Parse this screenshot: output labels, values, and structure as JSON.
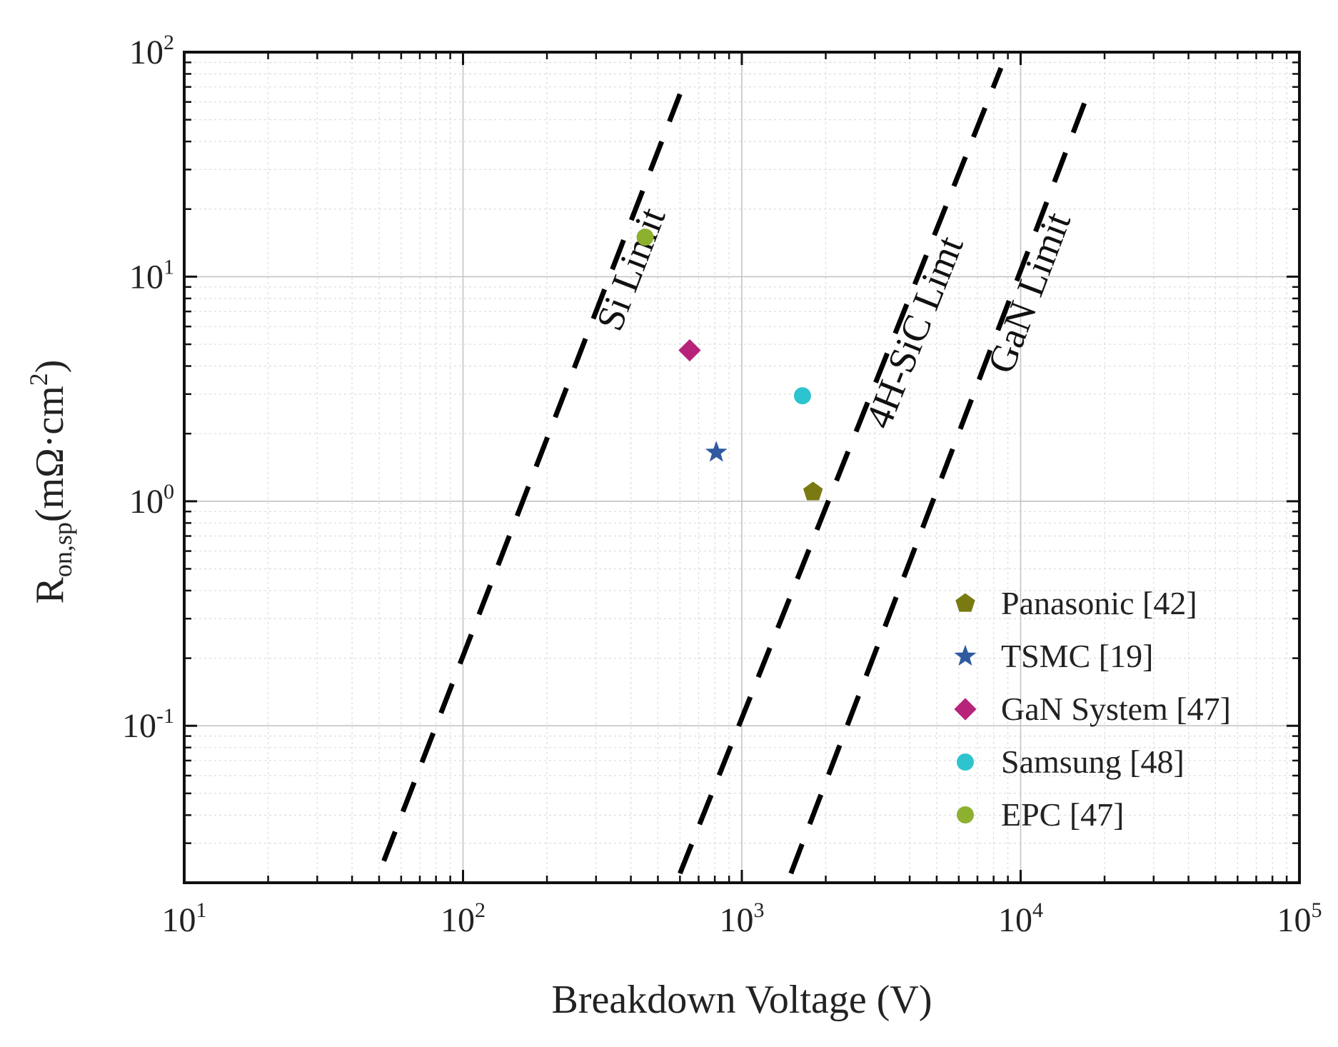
{
  "chart_data": {
    "type": "scatter",
    "title": "",
    "xlabel": "Breakdown Voltage (V)",
    "ylabel": {
      "base": "R",
      "sub": "on,sp",
      "unit": "(mΩ·cm",
      "unit_sup": "2",
      "unit_end": ")"
    },
    "x_scale": "log",
    "y_scale": "log",
    "xlim": [
      10,
      100000
    ],
    "ylim": [
      0.02,
      100
    ],
    "grid": true,
    "legend_position": "lower-right",
    "x_ticks": [
      {
        "value": 10,
        "base": "10",
        "exp": "1"
      },
      {
        "value": 100,
        "base": "10",
        "exp": "2"
      },
      {
        "value": 1000,
        "base": "10",
        "exp": "3"
      },
      {
        "value": 10000,
        "base": "10",
        "exp": "4"
      },
      {
        "value": 100000,
        "base": "10",
        "exp": "5"
      }
    ],
    "y_ticks": [
      {
        "value": 0.1,
        "base": "10",
        "exp": "-1"
      },
      {
        "value": 1,
        "base": "10",
        "exp": "0"
      },
      {
        "value": 10,
        "base": "10",
        "exp": "1"
      },
      {
        "value": 100,
        "base": "10",
        "exp": "2"
      }
    ],
    "series": [
      {
        "name": "Panasonic [42]",
        "marker": "pentagon",
        "color": "#7a7a12",
        "x": [
          1800
        ],
        "y": [
          1.1
        ]
      },
      {
        "name": "TSMC [19]",
        "marker": "star",
        "color": "#2f5aa0",
        "x": [
          810
        ],
        "y": [
          1.65
        ]
      },
      {
        "name": "GaN System [47]",
        "marker": "diamond",
        "color": "#b8237a",
        "x": [
          650
        ],
        "y": [
          4.7
        ]
      },
      {
        "name": "Samsung [48]",
        "marker": "circle",
        "color": "#2ec4cf",
        "x": [
          1650
        ],
        "y": [
          2.95
        ]
      },
      {
        "name": "EPC [47]",
        "marker": "circle",
        "color": "#8db02f",
        "x": [
          450
        ],
        "y": [
          15
        ]
      }
    ],
    "limit_lines": [
      {
        "label": "Si Limit",
        "x": [
          52,
          600
        ],
        "y": [
          0.025,
          65
        ]
      },
      {
        "label": "4H-SiC Limt",
        "x": [
          600,
          8500
        ],
        "y": [
          0.022,
          85
        ]
      },
      {
        "label": "GaN Limit",
        "x": [
          1500,
          17000
        ],
        "y": [
          0.022,
          60
        ]
      }
    ]
  }
}
